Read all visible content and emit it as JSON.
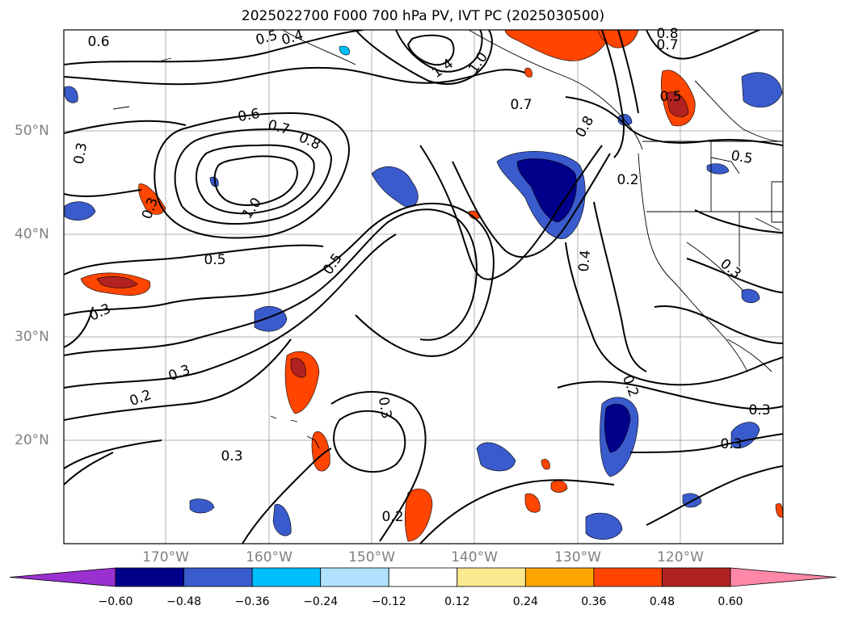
{
  "title": "2025022700 F000 700 hPa PV, IVT PC (2025030500)",
  "lon_labels": [
    "170°W",
    "160°W",
    "150°W",
    "140°W",
    "130°W",
    "120°W"
  ],
  "lat_labels": [
    "50°N",
    "40°N",
    "30°N",
    "20°N"
  ],
  "contour_labels": [
    "0.6",
    "0.5",
    "0.4",
    "1.4",
    "1.0",
    "0.7",
    "0.8",
    "0.7",
    "0.5",
    "0.3",
    "0.6",
    "0.7",
    "0.8",
    "0.8",
    "0.5",
    "0.2",
    "1.0",
    "0.5",
    "0.5",
    "0.4",
    "0.3",
    "0.3",
    "0.2",
    "0.3",
    "0.2",
    "0.3",
    "0.3",
    "0.3",
    "0.2",
    "0.3",
    "0.3"
  ],
  "colorbar": {
    "ticks": [
      "−0.60",
      "−0.48",
      "−0.36",
      "−0.24",
      "−0.12",
      "0.12",
      "0.24",
      "0.36",
      "0.48",
      "0.60"
    ],
    "colors": [
      "#9b30d0",
      "#00008b",
      "#3a5bcc",
      "#00bfff",
      "#b0e2ff",
      "#ffffff",
      "#fbe98f",
      "#ffa500",
      "#ff4500",
      "#b22222",
      "#ff88a8"
    ]
  }
}
